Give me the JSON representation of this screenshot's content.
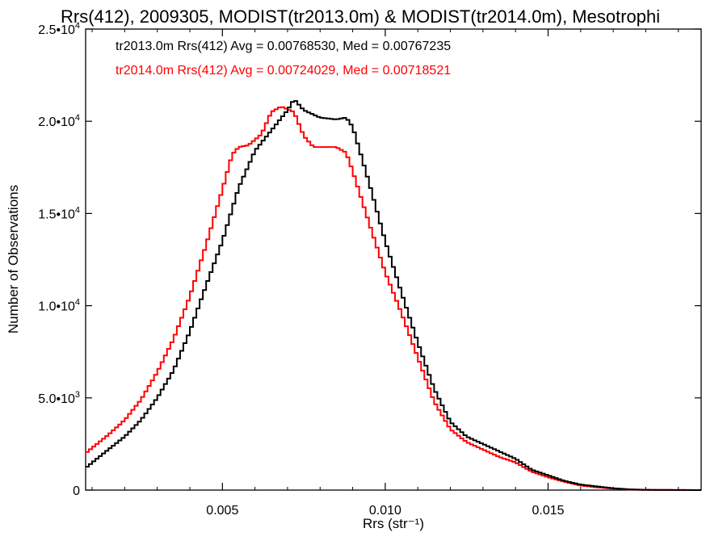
{
  "chart_data": {
    "type": "line",
    "step": true,
    "title": "Rrs(412), 2009305, MODIST(tr2013.0m) & MODIST(tr2014.0m), Mesotrophi",
    "xlabel": "Rrs (str⁻¹)",
    "ylabel": "Number of Observations",
    "xlim": [
      0.0008,
      0.0197
    ],
    "ylim": [
      0,
      25000
    ],
    "x_ticks": [
      {
        "value": 0.005,
        "label": "0.005"
      },
      {
        "value": 0.01,
        "label": "0.010"
      },
      {
        "value": 0.015,
        "label": "0.015"
      }
    ],
    "y_ticks": [
      {
        "value": 0,
        "mant": "0",
        "exp": ""
      },
      {
        "value": 5000,
        "mant": "5.0•10",
        "exp": "3"
      },
      {
        "value": 10000,
        "mant": "1.0•10",
        "exp": "4"
      },
      {
        "value": 15000,
        "mant": "1.5•10",
        "exp": "4"
      },
      {
        "value": 20000,
        "mant": "2.0•10",
        "exp": "4"
      },
      {
        "value": 25000,
        "mant": "2.5•10",
        "exp": "4"
      }
    ],
    "grid": false,
    "legend_position": "top-left",
    "series": [
      {
        "name": "tr2013.0m",
        "label": "tr2013.0m Rrs(412) Avg = 0.00768530, Med = 0.00767235",
        "color": "#000000",
        "points": [
          [
            0.0008,
            1200
          ],
          [
            0.0015,
            2200
          ],
          [
            0.002,
            2900
          ],
          [
            0.0025,
            3800
          ],
          [
            0.003,
            5000
          ],
          [
            0.0035,
            6500
          ],
          [
            0.004,
            8600
          ],
          [
            0.0045,
            11100
          ],
          [
            0.005,
            13500
          ],
          [
            0.0055,
            16400
          ],
          [
            0.006,
            18400
          ],
          [
            0.0065,
            19500
          ],
          [
            0.007,
            20600
          ],
          [
            0.0072,
            21200
          ],
          [
            0.0075,
            20600
          ],
          [
            0.008,
            20200
          ],
          [
            0.0085,
            20100
          ],
          [
            0.0088,
            20200
          ],
          [
            0.009,
            19700
          ],
          [
            0.0095,
            16700
          ],
          [
            0.01,
            13500
          ],
          [
            0.0105,
            10700
          ],
          [
            0.011,
            8000
          ],
          [
            0.0115,
            5500
          ],
          [
            0.012,
            3700
          ],
          [
            0.0125,
            2900
          ],
          [
            0.013,
            2500
          ],
          [
            0.0135,
            2100
          ],
          [
            0.014,
            1700
          ],
          [
            0.0145,
            1100
          ],
          [
            0.015,
            800
          ],
          [
            0.0155,
            500
          ],
          [
            0.016,
            300
          ],
          [
            0.0165,
            200
          ],
          [
            0.017,
            100
          ],
          [
            0.0175,
            40
          ],
          [
            0.018,
            15
          ],
          [
            0.0197,
            0
          ]
        ]
      },
      {
        "name": "tr2014.0m",
        "label": "tr2014.0m Rrs(412) Avg = 0.00724029, Med = 0.00718521",
        "color": "#ff0000",
        "points": [
          [
            0.0008,
            2000
          ],
          [
            0.0015,
            3000
          ],
          [
            0.002,
            3800
          ],
          [
            0.0025,
            4900
          ],
          [
            0.003,
            6400
          ],
          [
            0.0035,
            8200
          ],
          [
            0.004,
            10500
          ],
          [
            0.0045,
            13300
          ],
          [
            0.005,
            16300
          ],
          [
            0.0053,
            18200
          ],
          [
            0.0055,
            18600
          ],
          [
            0.0058,
            18700
          ],
          [
            0.0062,
            19300
          ],
          [
            0.0065,
            20500
          ],
          [
            0.0068,
            20800
          ],
          [
            0.0072,
            20500
          ],
          [
            0.0075,
            19200
          ],
          [
            0.0078,
            18600
          ],
          [
            0.0082,
            18600
          ],
          [
            0.0085,
            18600
          ],
          [
            0.0088,
            18300
          ],
          [
            0.009,
            17300
          ],
          [
            0.0095,
            14500
          ],
          [
            0.01,
            11800
          ],
          [
            0.0105,
            9600
          ],
          [
            0.011,
            7200
          ],
          [
            0.0115,
            4800
          ],
          [
            0.012,
            3300
          ],
          [
            0.0125,
            2600
          ],
          [
            0.013,
            2200
          ],
          [
            0.0135,
            1800
          ],
          [
            0.014,
            1500
          ],
          [
            0.0145,
            1000
          ],
          [
            0.015,
            700
          ],
          [
            0.0155,
            450
          ],
          [
            0.016,
            250
          ],
          [
            0.0165,
            150
          ],
          [
            0.017,
            80
          ],
          [
            0.0175,
            30
          ],
          [
            0.018,
            10
          ],
          [
            0.0197,
            0
          ]
        ]
      }
    ]
  }
}
